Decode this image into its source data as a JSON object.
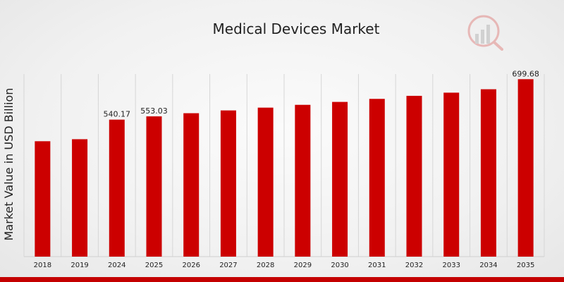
{
  "chart_data": {
    "type": "bar",
    "title": "Medical Devices Market",
    "xlabel": "",
    "ylabel": "Market Value in USD Billion",
    "categories": [
      "2018",
      "2019",
      "2024",
      "2025",
      "2026",
      "2027",
      "2028",
      "2029",
      "2030",
      "2031",
      "2032",
      "2033",
      "2034",
      "2035"
    ],
    "series": [
      {
        "values": [
          455.0,
          463.0,
          540.17,
          553.03,
          565.5,
          576.5,
          587.5,
          598.5,
          610.0,
          622.0,
          634.0,
          646.5,
          660.0,
          699.68
        ],
        "color": "#cc0000"
      }
    ],
    "data_labels": [
      {
        "index": 2,
        "text": "540.17"
      },
      {
        "index": 3,
        "text": "553.03"
      },
      {
        "index": 13,
        "text": "699.68"
      }
    ],
    "ylim": [
      0,
      720
    ],
    "grid": "vertical",
    "legend": "none"
  },
  "logo": {
    "icon": "bar-chart-magnifier-logo",
    "color": "#d9534f"
  }
}
